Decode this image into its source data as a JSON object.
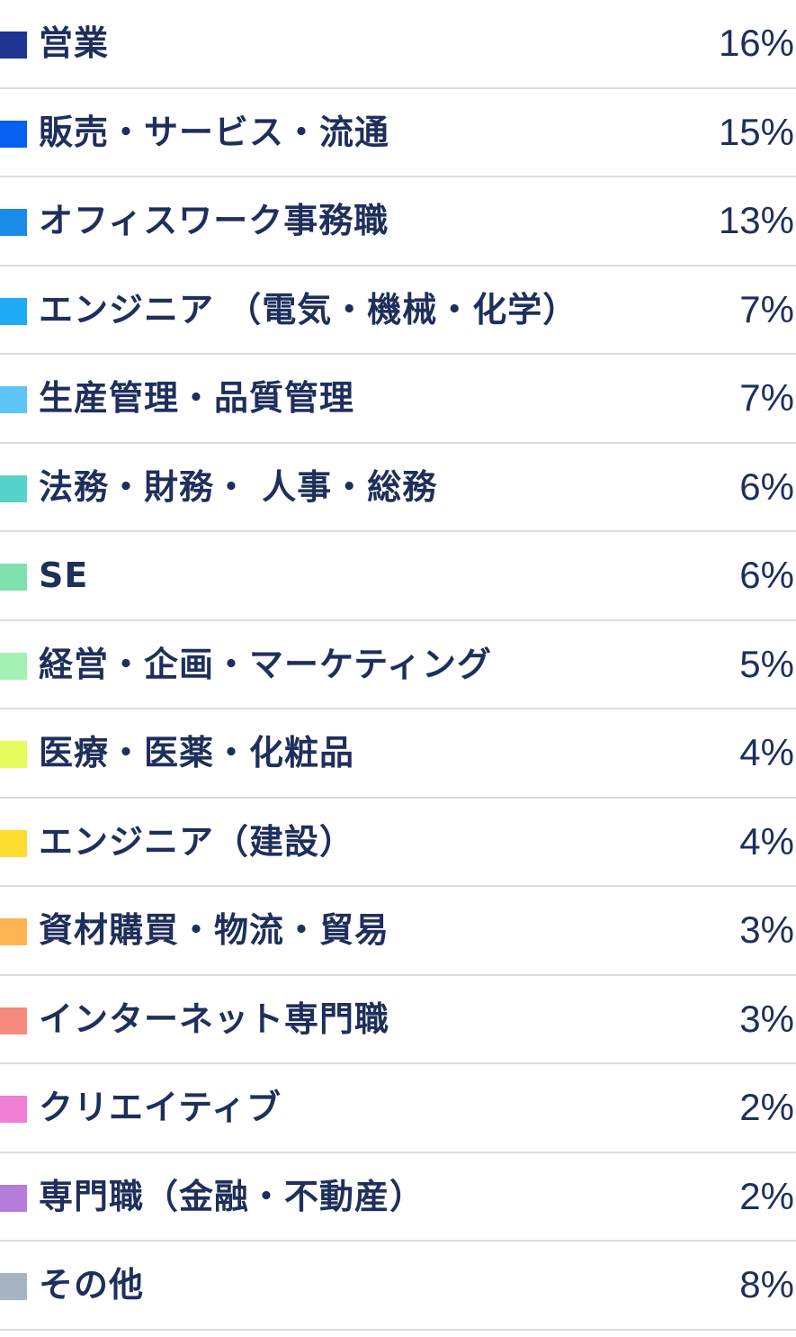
{
  "chart_data": {
    "type": "pie",
    "legend": "list",
    "categories": [
      "営業",
      "販売・サービス・流通",
      "オフィスワーク事務職",
      "エンジニア （電気・機械・化学）",
      "生産管理・品質管理",
      "法務・財務・ 人事・総務",
      "SE",
      "経営・企画・マーケティング",
      "医療・医薬・化粧品",
      "エンジニア（建設）",
      "資材購買・物流・貿易",
      "インターネット専門職",
      "クリエイティブ",
      "専門職（金融・不動産）",
      "その他"
    ],
    "values": [
      16,
      15,
      13,
      7,
      7,
      6,
      6,
      5,
      4,
      4,
      3,
      3,
      2,
      2,
      8
    ],
    "value_labels": [
      "16%",
      "15%",
      "13%",
      "7%",
      "7%",
      "6%",
      "6%",
      "5%",
      "4%",
      "4%",
      "3%",
      "3%",
      "2%",
      "2%",
      "8%"
    ],
    "colors": [
      "#1f3594",
      "#0560f0",
      "#1a8be6",
      "#21aaf6",
      "#5cc4f6",
      "#55d3c8",
      "#7ee0ad",
      "#a3f2b4",
      "#e6fb5e",
      "#fedb2e",
      "#feb350",
      "#f68a7c",
      "#ee7fd5",
      "#b57ddb",
      "#a5b3c2"
    ]
  }
}
